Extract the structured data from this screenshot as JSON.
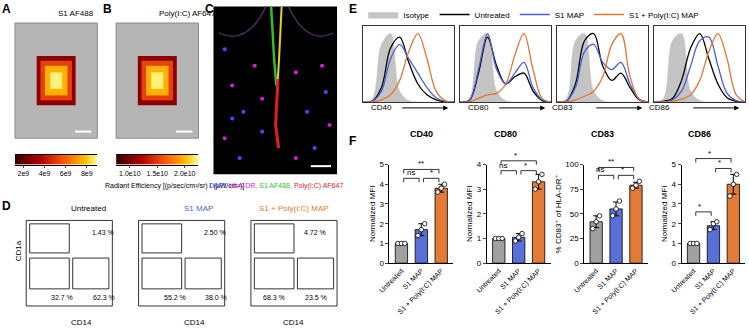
{
  "chart_data": [
    {
      "type": "image",
      "panel": "A",
      "title": "S1 AF488",
      "colorbar": {
        "xlim": [
          1200000000.0,
          9000000000.0
        ],
        "xticks": [
          {
            "value": 2000000000.0,
            "label": "2e9"
          },
          {
            "value": 4000000000.0,
            "label": "4e9"
          },
          {
            "value": 6000000000.0,
            "label": "6e9"
          },
          {
            "value": 8000000000.0,
            "label": "8e9"
          }
        ]
      },
      "colorbar_label": "Radiant Efficiency [(p/sec/cm²/sr) / (µW/cm²)]"
    },
    {
      "type": "image",
      "panel": "B",
      "title": "Poly(I:C) AF647",
      "colorbar": {
        "xlim": [
          7500000000.0,
          22500000000.0
        ],
        "xticks": [
          {
            "value": 10000000000.0,
            "label": "1.0e10"
          },
          {
            "value": 15000000000.0,
            "label": "1.5e10"
          },
          {
            "value": 20000000000.0,
            "label": "2.0e10"
          }
        ]
      }
    },
    {
      "type": "image",
      "panel": "C",
      "caption": [
        {
          "text": "DAPI,",
          "color": "#3b4cff"
        },
        {
          "text": "HLA-DR,",
          "color": "#d21fd2"
        },
        {
          "text": "S1 AF488,",
          "color": "#2fbf2f"
        },
        {
          "text": "Poly(I:C) AF647",
          "color": "#e02020"
        }
      ]
    },
    {
      "type": "contour",
      "panel": "D",
      "x_label": "CD14",
      "y_label": "CD1a",
      "plots": [
        {
          "title": "Untreated",
          "color": "#000000",
          "gate_labels": [
            "1.43 %",
            "32.7 %",
            "62.3 %"
          ]
        },
        {
          "title": "S1 MAP",
          "color": "#4a5fd6",
          "gate_labels": [
            "2.50 %",
            "55.2 %",
            "38.0 %"
          ]
        },
        {
          "title": "S1 + Poly(I:C) MAP",
          "color": "#e0772f",
          "gate_labels": [
            "4.72 %",
            "68.3 %",
            "23.5 %"
          ]
        }
      ]
    },
    {
      "type": "line",
      "panel": "E",
      "legend": "top",
      "tick_labels": false,
      "x": [
        0,
        1,
        2,
        3,
        4,
        5,
        6,
        7,
        8,
        9,
        10
      ],
      "xlim": [
        0,
        10
      ],
      "ylim": [
        0,
        105
      ],
      "series": [
        {
          "name": "Isotype",
          "color": "#c4c4c4",
          "line_style": "filled"
        },
        {
          "name": "Untreated",
          "color": "#000000",
          "line_style": "solid"
        },
        {
          "name": "S1 MAP",
          "color": "#4a5fd6",
          "line_style": "solid"
        },
        {
          "name": "S1 + Poly(I:C) MAP",
          "color": "#e0772f",
          "line_style": "solid"
        }
      ],
      "plots": [
        {
          "x_label": "CD40",
          "values": [
            [
              0,
              5,
              80,
              95,
              15,
              2,
              0,
              0,
              0,
              0,
              0
            ],
            [
              0,
              1,
              20,
              75,
              90,
              55,
              25,
              10,
              3,
              0,
              0
            ],
            [
              0,
              1,
              15,
              60,
              80,
              60,
              40,
              20,
              6,
              1,
              0
            ],
            [
              0,
              0,
              3,
              10,
              30,
              70,
              95,
              60,
              15,
              2,
              0
            ]
          ]
        },
        {
          "x_label": "CD80",
          "values": [
            [
              0,
              5,
              85,
              95,
              15,
              2,
              0,
              0,
              0,
              0,
              0
            ],
            [
              0,
              2,
              40,
              90,
              50,
              25,
              35,
              40,
              15,
              2,
              0
            ],
            [
              0,
              2,
              45,
              95,
              45,
              25,
              40,
              55,
              20,
              3,
              0
            ],
            [
              0,
              0,
              5,
              10,
              12,
              25,
              65,
              95,
              45,
              5,
              0
            ]
          ]
        },
        {
          "x_label": "CD83",
          "values": [
            [
              0,
              5,
              85,
              95,
              15,
              2,
              0,
              0,
              0,
              0,
              0
            ],
            [
              0,
              1,
              25,
              85,
              95,
              50,
              30,
              40,
              20,
              3,
              0
            ],
            [
              0,
              1,
              20,
              70,
              80,
              55,
              45,
              55,
              25,
              4,
              0
            ],
            [
              0,
              0,
              3,
              8,
              15,
              35,
              80,
              95,
              35,
              4,
              0
            ]
          ]
        },
        {
          "x_label": "CD86",
          "values": [
            [
              0,
              5,
              85,
              95,
              15,
              2,
              0,
              0,
              0,
              0,
              0
            ],
            [
              0,
              1,
              5,
              30,
              75,
              95,
              60,
              25,
              6,
              1,
              0
            ],
            [
              0,
              0,
              3,
              15,
              50,
              85,
              90,
              50,
              12,
              2,
              0
            ],
            [
              0,
              0,
              1,
              4,
              10,
              30,
              70,
              95,
              60,
              10,
              0
            ]
          ]
        }
      ]
    },
    {
      "type": "bar",
      "panel": "F",
      "categories": [
        "Untreated",
        "S1 MAP",
        "S1 + Poly(I:C) MAP"
      ],
      "colors": [
        "#a0a0a0",
        "#5a6fd8",
        "#e37a35"
      ],
      "plots": [
        {
          "title": "CD40",
          "y_label": "Normalized MFI",
          "ylim": [
            0,
            5
          ],
          "yticks": [
            0,
            1,
            2,
            3,
            4,
            5
          ],
          "values": [
            1,
            1.7,
            3.8
          ],
          "error": [
            0,
            0.3,
            0.2
          ],
          "points": [
            [
              1,
              1,
              1
            ],
            [
              1.4,
              1.7,
              2.0
            ],
            [
              3.6,
              3.8,
              4.0
            ]
          ],
          "comparisons": [
            {
              "from": 0,
              "to": 1,
              "label": "ns",
              "y": 4.3
            },
            {
              "from": 1,
              "to": 2,
              "label": "*",
              "y": 4.3
            },
            {
              "from": 0,
              "to": 2,
              "label": "**",
              "y": 4.75
            }
          ]
        },
        {
          "title": "CD80",
          "y_label": "Normalized MFI",
          "ylim": [
            0,
            4
          ],
          "yticks": [
            0,
            1,
            2,
            3,
            4
          ],
          "values": [
            1,
            1.05,
            3.3
          ],
          "error": [
            0,
            0.15,
            0.3
          ],
          "points": [
            [
              1,
              1,
              1
            ],
            [
              0.9,
              1.05,
              1.2
            ],
            [
              3.0,
              3.3,
              3.6
            ]
          ],
          "comparisons": [
            {
              "from": 0,
              "to": 1,
              "label": "ns",
              "y": 3.75
            },
            {
              "from": 1,
              "to": 2,
              "label": "*",
              "y": 3.75
            },
            {
              "from": 0,
              "to": 2,
              "label": "*",
              "y": 4.15
            }
          ]
        },
        {
          "title": "CD83",
          "y_label": "% CD83⁺ of HLA-DR⁺",
          "ylim": [
            0,
            100
          ],
          "yticks": [
            0,
            25,
            50,
            75,
            100
          ],
          "values": [
            42,
            55,
            79
          ],
          "error": [
            6,
            7,
            3
          ],
          "points": [
            [
              35,
              42,
              48
            ],
            [
              48,
              55,
              63
            ],
            [
              76,
              79,
              83
            ]
          ],
          "comparisons": [
            {
              "from": 0,
              "to": 1,
              "label": "ns",
              "y": 89
            },
            {
              "from": 1,
              "to": 2,
              "label": "*",
              "y": 89
            },
            {
              "from": 0,
              "to": 2,
              "label": "**",
              "y": 97
            }
          ]
        },
        {
          "title": "CD86",
          "y_label": "Normalized MFI",
          "ylim": [
            0,
            5
          ],
          "yticks": [
            0,
            1,
            2,
            3,
            4,
            5
          ],
          "values": [
            1,
            1.9,
            4.0
          ],
          "error": [
            0,
            0.2,
            0.5
          ],
          "points": [
            [
              1,
              1,
              1
            ],
            [
              1.7,
              2.0,
              2.1
            ],
            [
              3.4,
              4.0,
              4.5
            ]
          ],
          "comparisons": [
            {
              "from": 0,
              "to": 1,
              "label": "*",
              "y": 2.6
            },
            {
              "from": 1,
              "to": 2,
              "label": "*",
              "y": 4.8
            },
            {
              "from": 0,
              "to": 2,
              "label": "*",
              "y": 5.3
            }
          ]
        }
      ]
    }
  ]
}
